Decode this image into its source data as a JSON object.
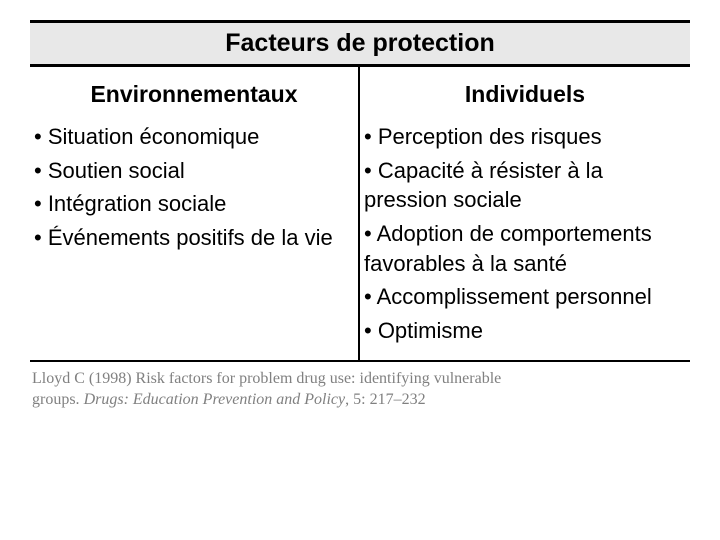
{
  "title": "Facteurs de protection",
  "left": {
    "header": "Environnementaux",
    "items": [
      "• Situation économique",
      "• Soutien social",
      "• Intégration sociale",
      "• Événements positifs de la vie"
    ]
  },
  "right": {
    "header": "Individuels",
    "items": [
      "• Perception des risques",
      "• Capacité à résister à la pression sociale",
      "• Adoption de comportements favorables à la santé",
      "• Accomplissement personnel",
      "• Optimisme"
    ]
  },
  "citation": {
    "prefix": "Lloyd C (1998) Risk factors for problem drug use: identifying vulnerable groups. ",
    "journal": "Drugs: Education Prevention and Policy",
    "suffix": ", 5: 217–232"
  },
  "colors": {
    "title_bg": "#e8e8e8",
    "border": "#000000",
    "text": "#000000",
    "citation": "#808080",
    "background": "#ffffff"
  },
  "fonts": {
    "body_family": "Arial",
    "citation_family": "Georgia",
    "title_size_pt": 25,
    "header_size_pt": 23,
    "item_size_pt": 22,
    "citation_size_pt": 16
  }
}
